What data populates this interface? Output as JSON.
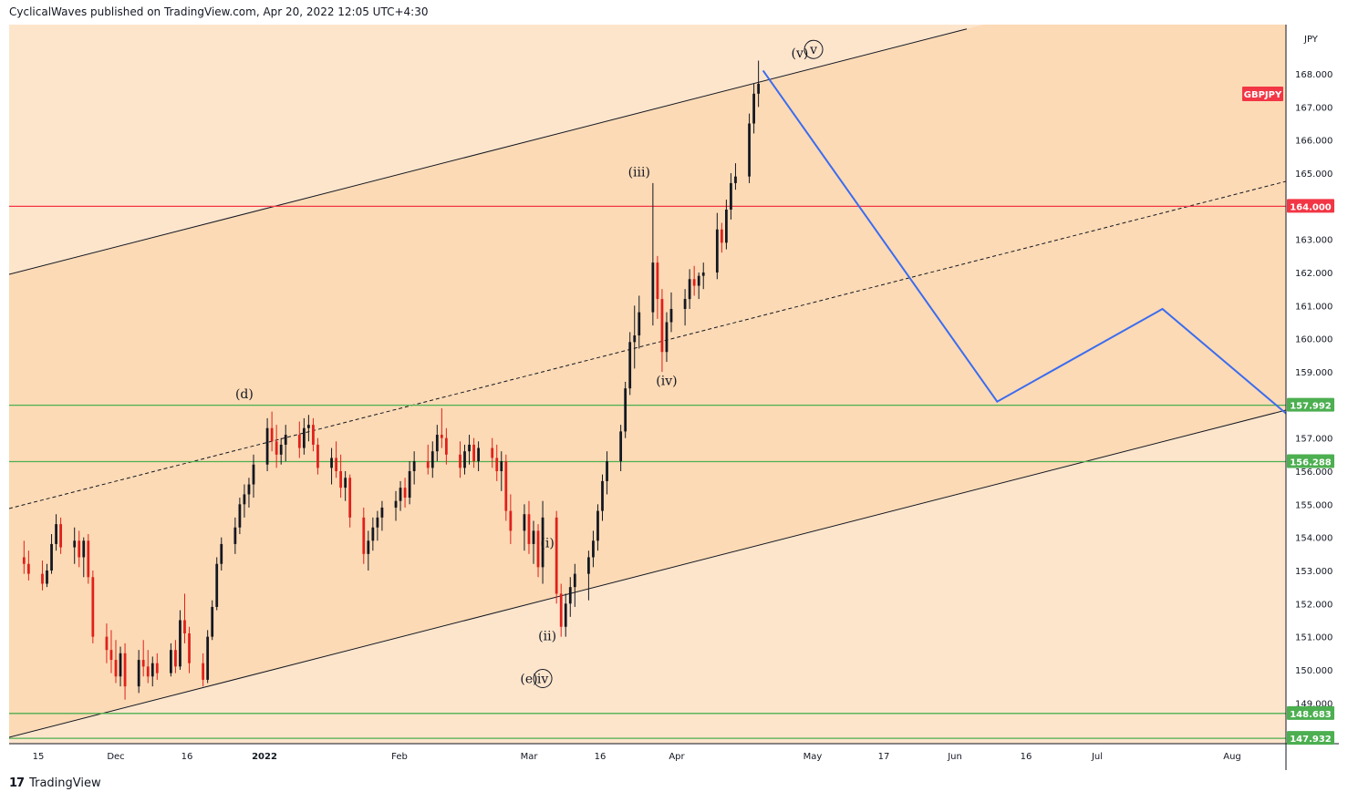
{
  "header": {
    "publisher_line": "CyclicalWaves published on TradingView.com, Apr 20, 2022 12:05 UTC+4:30"
  },
  "footer": {
    "brand": "TradingView",
    "logo_glyph": "17"
  },
  "chart_data": {
    "type": "candlestick",
    "symbol": "GBPJPY",
    "currency": "JPY",
    "y_ticks": [
      "149.000",
      "150.000",
      "151.000",
      "152.000",
      "153.000",
      "154.000",
      "155.000",
      "156.000",
      "157.000",
      "158.000",
      "159.000",
      "160.000",
      "161.000",
      "162.000",
      "163.000",
      "164.000",
      "165.000",
      "166.000",
      "167.000",
      "168.000"
    ],
    "x_ticks": [
      "15",
      "Dec",
      "16",
      "2022",
      "Feb",
      "Mar",
      "16",
      "Apr",
      "May",
      "17",
      "Jun",
      "16",
      "Jul",
      "Aug"
    ],
    "ylim": [
      147.8,
      169.0
    ],
    "price_levels": [
      {
        "value": 164.0,
        "label": "164.000",
        "color": "#f23645"
      },
      {
        "value": 157.992,
        "label": "157.992",
        "color": "#4caf50"
      },
      {
        "value": 156.288,
        "label": "156.288",
        "color": "#4caf50"
      },
      {
        "value": 148.683,
        "label": "148.683",
        "color": "#4caf50"
      },
      {
        "value": 147.932,
        "label": "147.932",
        "color": "#4caf50"
      }
    ],
    "symbol_badge": {
      "label": "GBPJPY",
      "color": "#f23645"
    },
    "wave_labels": [
      {
        "text": "(v)",
        "date": "2022-04-29",
        "price": 168.5
      },
      {
        "text": "v",
        "date": "2022-05-02",
        "price": 168.6,
        "circled": true
      },
      {
        "text": "(iii)",
        "date": "2022-03-25",
        "price": 164.9
      },
      {
        "text": "(iv)",
        "date": "2022-03-31",
        "price": 158.6
      },
      {
        "text": "(d)",
        "date": "2021-12-29",
        "price": 158.2
      },
      {
        "text": "(i)",
        "date": "2022-03-05",
        "price": 153.7
      },
      {
        "text": "(ii)",
        "date": "2022-03-05",
        "price": 150.9
      },
      {
        "text": "(e)",
        "date": "2022-03-01",
        "price": 149.6
      },
      {
        "text": "iv",
        "date": "2022-03-04",
        "price": 149.6,
        "circled": true
      }
    ],
    "projection_path": [
      {
        "date": "2022-04-21",
        "price": 168.1
      },
      {
        "date": "2022-06-11",
        "price": 158.1
      },
      {
        "date": "2022-07-17",
        "price": 160.9
      },
      {
        "date": "2022-08-15",
        "price": 157.5
      }
    ],
    "colors": {
      "upper_zone": "#fde5cc",
      "channel_fill": "#fcdab5",
      "projection": "#3b6cf0",
      "candle_up": "#131722",
      "candle_down": "#e0201b"
    },
    "candles": [
      {
        "date": "2021-11-11",
        "o": 153.4,
        "h": 153.9,
        "l": 152.9,
        "c": 153.2
      },
      {
        "date": "2021-11-12",
        "o": 153.2,
        "h": 153.6,
        "l": 152.7,
        "c": 152.9
      },
      {
        "date": "2021-11-15",
        "o": 152.9,
        "h": 153.3,
        "l": 152.4,
        "c": 152.6
      },
      {
        "date": "2021-11-16",
        "o": 152.6,
        "h": 153.2,
        "l": 152.5,
        "c": 153.0
      },
      {
        "date": "2021-11-17",
        "o": 153.0,
        "h": 154.1,
        "l": 152.9,
        "c": 153.8
      },
      {
        "date": "2021-11-18",
        "o": 153.8,
        "h": 154.7,
        "l": 153.6,
        "c": 154.4
      },
      {
        "date": "2021-11-19",
        "o": 154.4,
        "h": 154.6,
        "l": 153.5,
        "c": 153.7
      },
      {
        "date": "2021-11-22",
        "o": 153.7,
        "h": 154.3,
        "l": 153.2,
        "c": 153.9
      },
      {
        "date": "2021-11-23",
        "o": 153.9,
        "h": 154.2,
        "l": 153.1,
        "c": 153.4
      },
      {
        "date": "2021-11-24",
        "o": 153.4,
        "h": 154.0,
        "l": 152.8,
        "c": 153.9
      },
      {
        "date": "2021-11-25",
        "o": 153.9,
        "h": 154.1,
        "l": 152.6,
        "c": 152.8
      },
      {
        "date": "2021-11-26",
        "o": 152.8,
        "h": 153.0,
        "l": 150.8,
        "c": 151.0
      },
      {
        "date": "2021-11-29",
        "o": 151.0,
        "h": 151.4,
        "l": 150.2,
        "c": 150.6
      },
      {
        "date": "2021-11-30",
        "o": 150.6,
        "h": 151.2,
        "l": 149.9,
        "c": 150.3
      },
      {
        "date": "2021-12-01",
        "o": 150.3,
        "h": 150.9,
        "l": 149.6,
        "c": 149.8
      },
      {
        "date": "2021-12-02",
        "o": 149.8,
        "h": 150.7,
        "l": 149.5,
        "c": 150.5
      },
      {
        "date": "2021-12-03",
        "o": 150.5,
        "h": 150.8,
        "l": 149.1,
        "c": 149.5
      },
      {
        "date": "2021-12-06",
        "o": 149.5,
        "h": 150.6,
        "l": 149.3,
        "c": 150.3
      },
      {
        "date": "2021-12-07",
        "o": 150.3,
        "h": 150.9,
        "l": 149.8,
        "c": 150.1
      },
      {
        "date": "2021-12-08",
        "o": 150.1,
        "h": 150.6,
        "l": 149.6,
        "c": 149.8
      },
      {
        "date": "2021-12-09",
        "o": 149.8,
        "h": 150.4,
        "l": 149.5,
        "c": 150.2
      },
      {
        "date": "2021-12-10",
        "o": 150.2,
        "h": 150.5,
        "l": 149.7,
        "c": 149.9
      },
      {
        "date": "2021-12-13",
        "o": 149.9,
        "h": 150.8,
        "l": 149.8,
        "c": 150.6
      },
      {
        "date": "2021-12-14",
        "o": 150.6,
        "h": 150.9,
        "l": 149.9,
        "c": 150.1
      },
      {
        "date": "2021-12-15",
        "o": 150.1,
        "h": 151.8,
        "l": 150.0,
        "c": 151.5
      },
      {
        "date": "2021-12-16",
        "o": 151.5,
        "h": 152.3,
        "l": 150.8,
        "c": 151.1
      },
      {
        "date": "2021-12-17",
        "o": 151.1,
        "h": 151.3,
        "l": 149.9,
        "c": 150.2
      },
      {
        "date": "2021-12-20",
        "o": 150.2,
        "h": 150.5,
        "l": 149.5,
        "c": 149.7
      },
      {
        "date": "2021-12-21",
        "o": 149.7,
        "h": 151.2,
        "l": 149.6,
        "c": 151.0
      },
      {
        "date": "2021-12-22",
        "o": 151.0,
        "h": 152.1,
        "l": 150.9,
        "c": 151.9
      },
      {
        "date": "2021-12-23",
        "o": 151.9,
        "h": 153.4,
        "l": 151.8,
        "c": 153.2
      },
      {
        "date": "2021-12-24",
        "o": 153.2,
        "h": 154.0,
        "l": 153.0,
        "c": 153.8
      },
      {
        "date": "2021-12-27",
        "o": 153.8,
        "h": 154.6,
        "l": 153.5,
        "c": 154.3
      },
      {
        "date": "2021-12-28",
        "o": 154.3,
        "h": 155.2,
        "l": 154.1,
        "c": 155.0
      },
      {
        "date": "2021-12-29",
        "o": 155.0,
        "h": 155.6,
        "l": 154.6,
        "c": 155.3
      },
      {
        "date": "2021-12-30",
        "o": 155.3,
        "h": 155.8,
        "l": 154.9,
        "c": 155.6
      },
      {
        "date": "2021-12-31",
        "o": 155.6,
        "h": 156.5,
        "l": 155.2,
        "c": 156.2
      },
      {
        "date": "2022-01-03",
        "o": 156.2,
        "h": 157.6,
        "l": 156.0,
        "c": 157.3
      },
      {
        "date": "2022-01-04",
        "o": 157.3,
        "h": 157.8,
        "l": 156.6,
        "c": 156.9
      },
      {
        "date": "2022-01-05",
        "o": 156.9,
        "h": 157.4,
        "l": 156.1,
        "c": 156.5
      },
      {
        "date": "2022-01-06",
        "o": 156.5,
        "h": 157.0,
        "l": 156.2,
        "c": 156.8
      },
      {
        "date": "2022-01-07",
        "o": 156.8,
        "h": 157.4,
        "l": 156.3,
        "c": 157.1
      },
      {
        "date": "2022-01-10",
        "o": 157.1,
        "h": 157.5,
        "l": 156.4,
        "c": 156.7
      },
      {
        "date": "2022-01-11",
        "o": 156.7,
        "h": 157.6,
        "l": 156.5,
        "c": 157.3
      },
      {
        "date": "2022-01-12",
        "o": 157.3,
        "h": 157.7,
        "l": 156.9,
        "c": 157.4
      },
      {
        "date": "2022-01-13",
        "o": 157.4,
        "h": 157.6,
        "l": 156.6,
        "c": 156.8
      },
      {
        "date": "2022-01-14",
        "o": 156.8,
        "h": 157.0,
        "l": 155.9,
        "c": 156.1
      },
      {
        "date": "2022-01-17",
        "o": 156.1,
        "h": 156.7,
        "l": 155.6,
        "c": 156.4
      },
      {
        "date": "2022-01-18",
        "o": 156.4,
        "h": 156.9,
        "l": 155.8,
        "c": 156.0
      },
      {
        "date": "2022-01-19",
        "o": 156.0,
        "h": 156.5,
        "l": 155.2,
        "c": 155.5
      },
      {
        "date": "2022-01-20",
        "o": 155.5,
        "h": 156.0,
        "l": 155.1,
        "c": 155.8
      },
      {
        "date": "2022-01-21",
        "o": 155.8,
        "h": 155.9,
        "l": 154.3,
        "c": 154.6
      },
      {
        "date": "2022-01-24",
        "o": 154.6,
        "h": 154.9,
        "l": 153.2,
        "c": 153.5
      },
      {
        "date": "2022-01-25",
        "o": 153.5,
        "h": 154.2,
        "l": 153.0,
        "c": 153.9
      },
      {
        "date": "2022-01-26",
        "o": 153.9,
        "h": 154.6,
        "l": 153.6,
        "c": 154.3
      },
      {
        "date": "2022-01-27",
        "o": 154.3,
        "h": 154.8,
        "l": 153.9,
        "c": 154.6
      },
      {
        "date": "2022-01-28",
        "o": 154.6,
        "h": 155.1,
        "l": 154.2,
        "c": 154.9
      },
      {
        "date": "2022-01-31",
        "o": 154.9,
        "h": 155.4,
        "l": 154.5,
        "c": 155.1
      },
      {
        "date": "2022-02-01",
        "o": 155.1,
        "h": 155.7,
        "l": 154.8,
        "c": 155.5
      },
      {
        "date": "2022-02-02",
        "o": 155.5,
        "h": 155.8,
        "l": 154.9,
        "c": 155.2
      },
      {
        "date": "2022-02-03",
        "o": 155.2,
        "h": 156.3,
        "l": 155.0,
        "c": 156.0
      },
      {
        "date": "2022-02-04",
        "o": 156.0,
        "h": 156.6,
        "l": 155.6,
        "c": 156.3
      },
      {
        "date": "2022-02-07",
        "o": 156.3,
        "h": 156.8,
        "l": 155.9,
        "c": 156.1
      },
      {
        "date": "2022-02-08",
        "o": 156.1,
        "h": 156.9,
        "l": 155.8,
        "c": 156.6
      },
      {
        "date": "2022-02-09",
        "o": 156.6,
        "h": 157.4,
        "l": 156.3,
        "c": 157.1
      },
      {
        "date": "2022-02-10",
        "o": 157.1,
        "h": 157.9,
        "l": 156.7,
        "c": 157.0
      },
      {
        "date": "2022-02-11",
        "o": 157.0,
        "h": 157.3,
        "l": 156.2,
        "c": 156.5
      },
      {
        "date": "2022-02-14",
        "o": 156.5,
        "h": 156.9,
        "l": 155.8,
        "c": 156.1
      },
      {
        "date": "2022-02-15",
        "o": 156.1,
        "h": 156.8,
        "l": 155.9,
        "c": 156.6
      },
      {
        "date": "2022-02-16",
        "o": 156.6,
        "h": 157.1,
        "l": 156.2,
        "c": 156.8
      },
      {
        "date": "2022-02-17",
        "o": 156.8,
        "h": 157.0,
        "l": 156.1,
        "c": 156.3
      },
      {
        "date": "2022-02-18",
        "o": 156.3,
        "h": 156.9,
        "l": 156.0,
        "c": 156.7
      },
      {
        "date": "2022-02-21",
        "o": 156.7,
        "h": 157.0,
        "l": 156.1,
        "c": 156.4
      },
      {
        "date": "2022-02-22",
        "o": 156.4,
        "h": 156.8,
        "l": 155.7,
        "c": 156.0
      },
      {
        "date": "2022-02-23",
        "o": 156.0,
        "h": 156.6,
        "l": 155.4,
        "c": 156.3
      },
      {
        "date": "2022-02-24",
        "o": 156.3,
        "h": 156.5,
        "l": 154.5,
        "c": 154.8
      },
      {
        "date": "2022-02-25",
        "o": 154.8,
        "h": 155.3,
        "l": 153.8,
        "c": 154.2
      },
      {
        "date": "2022-02-28",
        "o": 154.2,
        "h": 155.0,
        "l": 153.6,
        "c": 154.7
      },
      {
        "date": "2022-03-01",
        "o": 154.7,
        "h": 155.1,
        "l": 153.5,
        "c": 153.8
      },
      {
        "date": "2022-03-02",
        "o": 153.8,
        "h": 154.5,
        "l": 153.2,
        "c": 154.2
      },
      {
        "date": "2022-03-03",
        "o": 154.2,
        "h": 154.4,
        "l": 152.8,
        "c": 153.1
      },
      {
        "date": "2022-03-04",
        "o": 153.1,
        "h": 155.1,
        "l": 152.6,
        "c": 154.6
      },
      {
        "date": "2022-03-07",
        "o": 154.6,
        "h": 154.8,
        "l": 152.0,
        "c": 152.3
      },
      {
        "date": "2022-03-08",
        "o": 152.3,
        "h": 152.6,
        "l": 151.0,
        "c": 151.3
      },
      {
        "date": "2022-03-09",
        "o": 151.3,
        "h": 152.3,
        "l": 151.0,
        "c": 152.0
      },
      {
        "date": "2022-03-10",
        "o": 152.0,
        "h": 152.8,
        "l": 151.6,
        "c": 152.5
      },
      {
        "date": "2022-03-11",
        "o": 152.5,
        "h": 153.2,
        "l": 151.9,
        "c": 152.9
      },
      {
        "date": "2022-03-14",
        "o": 152.9,
        "h": 153.6,
        "l": 152.1,
        "c": 153.4
      },
      {
        "date": "2022-03-15",
        "o": 153.4,
        "h": 154.2,
        "l": 153.1,
        "c": 153.9
      },
      {
        "date": "2022-03-16",
        "o": 153.9,
        "h": 155.0,
        "l": 153.6,
        "c": 154.8
      },
      {
        "date": "2022-03-17",
        "o": 154.8,
        "h": 155.9,
        "l": 154.5,
        "c": 155.7
      },
      {
        "date": "2022-03-18",
        "o": 155.7,
        "h": 156.6,
        "l": 155.3,
        "c": 156.3
      },
      {
        "date": "2022-03-21",
        "o": 156.3,
        "h": 157.4,
        "l": 156.0,
        "c": 157.2
      },
      {
        "date": "2022-03-22",
        "o": 157.2,
        "h": 158.7,
        "l": 157.0,
        "c": 158.5
      },
      {
        "date": "2022-03-23",
        "o": 158.5,
        "h": 160.2,
        "l": 158.3,
        "c": 159.9
      },
      {
        "date": "2022-03-24",
        "o": 159.9,
        "h": 161.0,
        "l": 159.1,
        "c": 160.1
      },
      {
        "date": "2022-03-25",
        "o": 160.1,
        "h": 161.3,
        "l": 159.7,
        "c": 160.8
      },
      {
        "date": "2022-03-28",
        "o": 160.8,
        "h": 164.7,
        "l": 160.4,
        "c": 162.3
      },
      {
        "date": "2022-03-29",
        "o": 162.3,
        "h": 162.5,
        "l": 160.6,
        "c": 161.2
      },
      {
        "date": "2022-03-30",
        "o": 161.2,
        "h": 161.5,
        "l": 159.0,
        "c": 159.6
      },
      {
        "date": "2022-03-31",
        "o": 159.6,
        "h": 160.8,
        "l": 159.3,
        "c": 160.5
      },
      {
        "date": "2022-04-01",
        "o": 160.5,
        "h": 161.4,
        "l": 160.2,
        "c": 160.9
      },
      {
        "date": "2022-04-04",
        "o": 160.9,
        "h": 161.5,
        "l": 160.4,
        "c": 161.2
      },
      {
        "date": "2022-04-05",
        "o": 161.2,
        "h": 162.1,
        "l": 160.9,
        "c": 161.8
      },
      {
        "date": "2022-04-06",
        "o": 161.8,
        "h": 162.2,
        "l": 161.3,
        "c": 161.6
      },
      {
        "date": "2022-04-07",
        "o": 161.6,
        "h": 162.0,
        "l": 161.2,
        "c": 161.9
      },
      {
        "date": "2022-04-08",
        "o": 161.9,
        "h": 162.3,
        "l": 161.5,
        "c": 162.0
      },
      {
        "date": "2022-04-11",
        "o": 162.0,
        "h": 163.8,
        "l": 161.8,
        "c": 163.3
      },
      {
        "date": "2022-04-12",
        "o": 163.3,
        "h": 163.5,
        "l": 162.6,
        "c": 162.9
      },
      {
        "date": "2022-04-13",
        "o": 162.9,
        "h": 164.2,
        "l": 162.7,
        "c": 163.9
      },
      {
        "date": "2022-04-14",
        "o": 163.9,
        "h": 165.0,
        "l": 163.6,
        "c": 164.7
      },
      {
        "date": "2022-04-15",
        "o": 164.7,
        "h": 165.3,
        "l": 164.5,
        "c": 164.9
      },
      {
        "date": "2022-04-18",
        "o": 164.9,
        "h": 166.8,
        "l": 164.7,
        "c": 166.5
      },
      {
        "date": "2022-04-19",
        "o": 166.5,
        "h": 167.7,
        "l": 166.2,
        "c": 167.4
      },
      {
        "date": "2022-04-20",
        "o": 167.4,
        "h": 168.4,
        "l": 167.0,
        "c": 167.7
      }
    ]
  }
}
